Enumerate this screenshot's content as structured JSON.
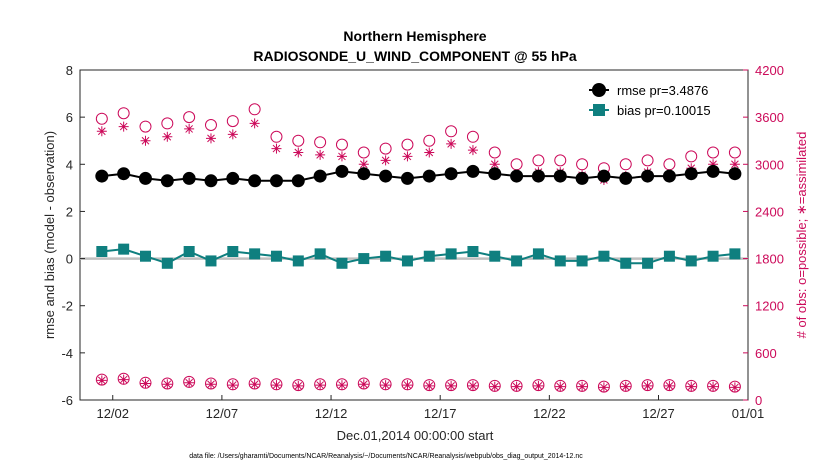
{
  "chart_data": {
    "type": "line",
    "title": "Northern Hemisphere",
    "subtitle": "RADIOSONDE_U_WIND_COMPONENT @ 55 hPa",
    "xlabel": "Dec.01,2014 00:00:00 start",
    "ylabel": "rmse and bias (model - observation)",
    "ylabel_right": "# of obs: o=possible; ∗=assimilated",
    "ylim": [
      -6,
      8
    ],
    "ylim_right": [
      0,
      4200
    ],
    "xlim": [
      0.5,
      31.1
    ],
    "x_ticks": [
      {
        "value": 2,
        "label": "12/02"
      },
      {
        "value": 7,
        "label": "12/07"
      },
      {
        "value": 12,
        "label": "12/12"
      },
      {
        "value": 17,
        "label": "12/17"
      },
      {
        "value": 22,
        "label": "12/22"
      },
      {
        "value": 27,
        "label": "12/27"
      },
      {
        "value": 32,
        "label": "01/01"
      }
    ],
    "y_ticks": [
      "-6",
      "-4",
      "-2",
      "0",
      "2",
      "4",
      "6",
      "8"
    ],
    "y_ticks_right": [
      "0",
      "600",
      "1200",
      "1800",
      "2400",
      "3000",
      "3600",
      "4200"
    ],
    "legend": [
      {
        "name": "rmse pr=3.4876",
        "color": "#000000",
        "marker": "circle"
      },
      {
        "name": "bias pr=0.10015",
        "color": "#0f7f7f",
        "marker": "square"
      }
    ],
    "legend_position": "top-right",
    "colors": {
      "rmse": "#000000",
      "bias": "#0f7f7f",
      "obs": "#cc0a5a",
      "zero_line": "#bfbfbf"
    },
    "series": [
      {
        "name": "rmse",
        "axis": "left",
        "x": [
          1.5,
          2.5,
          3.5,
          4.5,
          5.5,
          6.5,
          7.5,
          8.5,
          9.5,
          10.5,
          11.5,
          12.5,
          13.5,
          14.5,
          15.5,
          16.5,
          17.5,
          18.5,
          19.5,
          20.5,
          21.5,
          22.5,
          23.5,
          24.5,
          25.5,
          26.5,
          27.5,
          28.5,
          29.5,
          30.5
        ],
        "values": [
          3.5,
          3.6,
          3.4,
          3.3,
          3.4,
          3.3,
          3.4,
          3.3,
          3.3,
          3.3,
          3.5,
          3.7,
          3.6,
          3.5,
          3.4,
          3.5,
          3.6,
          3.7,
          3.6,
          3.5,
          3.5,
          3.5,
          3.4,
          3.5,
          3.4,
          3.5,
          3.5,
          3.6,
          3.7,
          3.6
        ]
      },
      {
        "name": "bias",
        "axis": "left",
        "x": [
          1.5,
          2.5,
          3.5,
          4.5,
          5.5,
          6.5,
          7.5,
          8.5,
          9.5,
          10.5,
          11.5,
          12.5,
          13.5,
          14.5,
          15.5,
          16.5,
          17.5,
          18.5,
          19.5,
          20.5,
          21.5,
          22.5,
          23.5,
          24.5,
          25.5,
          26.5,
          27.5,
          28.5,
          29.5,
          30.5
        ],
        "values": [
          0.3,
          0.4,
          0.1,
          -0.2,
          0.3,
          -0.1,
          0.3,
          0.2,
          0.1,
          -0.1,
          0.2,
          -0.2,
          0.0,
          0.1,
          -0.1,
          0.1,
          0.2,
          0.3,
          0.1,
          -0.1,
          0.2,
          -0.1,
          -0.1,
          0.1,
          -0.2,
          -0.2,
          0.1,
          -0.1,
          0.1,
          0.2
        ]
      },
      {
        "name": "possible",
        "axis": "right",
        "x": [
          1.5,
          2.5,
          3.5,
          4.5,
          5.5,
          6.5,
          7.5,
          8.5,
          9.5,
          10.5,
          11.5,
          12.5,
          13.5,
          14.5,
          15.5,
          16.5,
          17.5,
          18.5,
          19.5,
          20.5,
          21.5,
          22.5,
          23.5,
          24.5,
          25.5,
          26.5,
          27.5,
          28.5,
          29.5,
          30.5
        ],
        "values": [
          3580,
          3650,
          3480,
          3520,
          3600,
          3500,
          3550,
          3700,
          3350,
          3300,
          3280,
          3250,
          3150,
          3200,
          3250,
          3300,
          3420,
          3350,
          3150,
          3000,
          3050,
          3050,
          3000,
          2950,
          3000,
          3050,
          3000,
          3100,
          3150,
          3150
        ]
      },
      {
        "name": "assimilated",
        "axis": "right",
        "x": [
          1.5,
          2.5,
          3.5,
          4.5,
          5.5,
          6.5,
          7.5,
          8.5,
          9.5,
          10.5,
          11.5,
          12.5,
          13.5,
          14.5,
          15.5,
          16.5,
          17.5,
          18.5,
          19.5,
          20.5,
          21.5,
          22.5,
          23.5,
          24.5,
          25.5,
          26.5,
          27.5,
          28.5,
          29.5,
          30.5
        ],
        "values": [
          3420,
          3480,
          3300,
          3350,
          3450,
          3330,
          3380,
          3520,
          3200,
          3150,
          3120,
          3100,
          3000,
          3050,
          3100,
          3150,
          3260,
          3180,
          3000,
          2870,
          2900,
          2900,
          2860,
          2800,
          2850,
          2900,
          2860,
          2950,
          3000,
          3000
        ]
      },
      {
        "name": "possible_low",
        "axis": "right",
        "x": [
          1.5,
          2.5,
          3.5,
          4.5,
          5.5,
          6.5,
          7.5,
          8.5,
          9.5,
          10.5,
          11.5,
          12.5,
          13.5,
          14.5,
          15.5,
          16.5,
          17.5,
          18.5,
          19.5,
          20.5,
          21.5,
          22.5,
          23.5,
          24.5,
          25.5,
          26.5,
          27.5,
          28.5,
          29.5,
          30.5
        ],
        "values": [
          260,
          270,
          220,
          210,
          230,
          210,
          200,
          210,
          200,
          190,
          200,
          200,
          210,
          200,
          200,
          190,
          190,
          190,
          180,
          180,
          190,
          180,
          180,
          170,
          180,
          190,
          190,
          180,
          180,
          170
        ]
      },
      {
        "name": "assimilated_low",
        "axis": "right",
        "x": [
          1.5,
          2.5,
          3.5,
          4.5,
          5.5,
          6.5,
          7.5,
          8.5,
          9.5,
          10.5,
          11.5,
          12.5,
          13.5,
          14.5,
          15.5,
          16.5,
          17.5,
          18.5,
          19.5,
          20.5,
          21.5,
          22.5,
          23.5,
          24.5,
          25.5,
          26.5,
          27.5,
          28.5,
          29.5,
          30.5
        ],
        "values": [
          250,
          260,
          210,
          200,
          220,
          200,
          190,
          200,
          190,
          180,
          190,
          190,
          200,
          190,
          190,
          180,
          180,
          180,
          170,
          170,
          180,
          170,
          170,
          160,
          170,
          180,
          180,
          170,
          170,
          160
        ]
      }
    ]
  },
  "footer": {
    "data_file": "data file: /Users/gharamti/Documents/NCAR/Reanalysis/~/Documents/NCAR/Reanalysis/webpub/obs_diag_output_2014-12.nc"
  }
}
